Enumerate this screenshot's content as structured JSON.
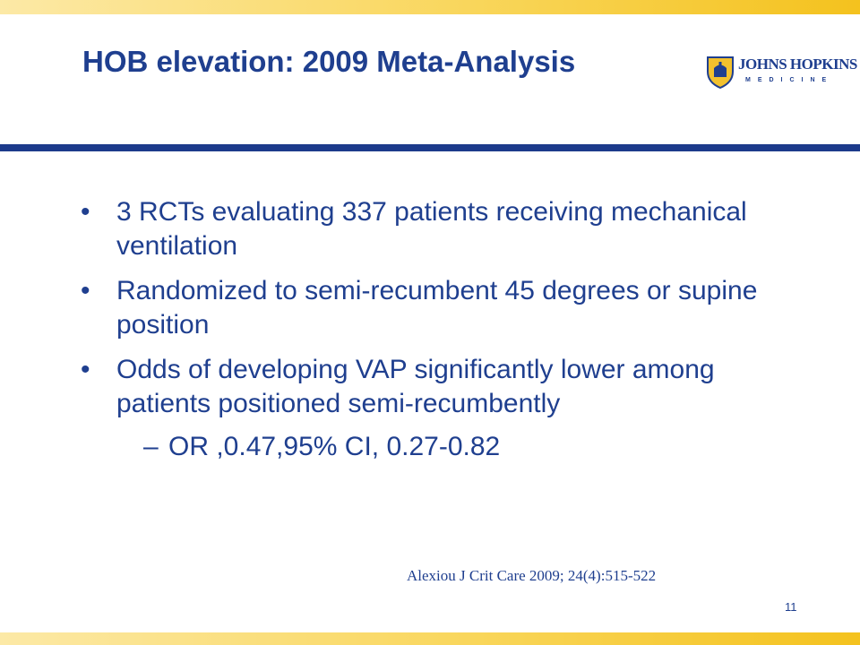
{
  "slide": {
    "title": "HOB elevation: 2009 Meta-Analysis",
    "logo": {
      "name": "JOHNS HOPKINS",
      "sub": "MEDICINE"
    },
    "bullets": [
      "3 RCTs evaluating 337 patients receiving mechanical ventilation",
      "Randomized to semi-recumbent 45 degrees or supine position",
      "Odds of developing VAP significantly lower among patients positioned semi-recumbently"
    ],
    "sub_bullet": "OR ,0.47,95% CI, 0.27-0.82",
    "bullet_glyph": "•",
    "dash_glyph": "–",
    "citation": "Alexiou J Crit Care 2009; 24(4):515-522",
    "page_number": "11"
  },
  "colors": {
    "text": "#1f3f8f",
    "rule": "#1c3a8b",
    "band_light": "#fce9a6",
    "band_dark": "#f4c21e"
  },
  "icons": {
    "logo": "johns-hopkins-shield-icon"
  }
}
